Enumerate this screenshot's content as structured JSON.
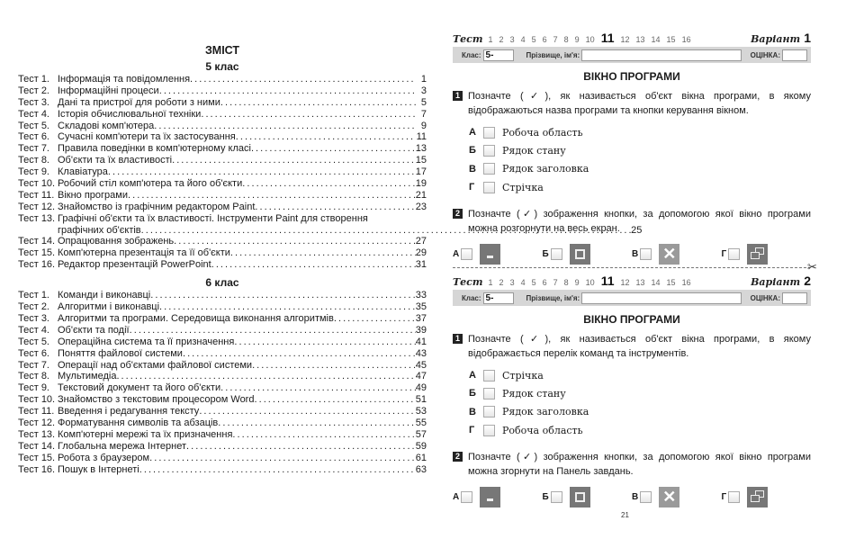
{
  "toc": {
    "title": "ЗМІСТ",
    "sections": [
      {
        "heading": "5 клас",
        "items": [
          {
            "num": "Тест 1.",
            "title": "Інформація та повідомлення",
            "page": "1"
          },
          {
            "num": "Тест 2.",
            "title": "Інформаційні процеси",
            "page": "3"
          },
          {
            "num": "Тест 3.",
            "title": "Дані та пристрої для роботи з ними",
            "page": "5"
          },
          {
            "num": "Тест 4.",
            "title": "Історія обчислювальної техніки",
            "page": "7"
          },
          {
            "num": "Тест 5.",
            "title": "Складові комп'ютера",
            "page": "9"
          },
          {
            "num": "Тест 6.",
            "title": "Сучасні комп'ютери та їх застосування",
            "page": "11"
          },
          {
            "num": "Тест 7.",
            "title": "Правила поведінки в комп'ютерному класі",
            "page": "13"
          },
          {
            "num": "Тест 8.",
            "title": "Об'єкти та їх властивості",
            "page": "15"
          },
          {
            "num": "Тест 9.",
            "title": "Клавіатура",
            "page": "17"
          },
          {
            "num": "Тест 10.",
            "title": "Робочий стіл комп'ютера та його об'єкти",
            "page": "19"
          },
          {
            "num": "Тест 11.",
            "title": "Вікно програми",
            "page": "21"
          },
          {
            "num": "Тест 12.",
            "title": "Знайомство із графічним редактором Paint",
            "page": "23"
          },
          {
            "num": "Тест 13.",
            "title": "Графічні об'єкти та їх властивості. Інструменти Paint для створення",
            "title2": "графічних об'єктів",
            "page": "25"
          },
          {
            "num": "Тест 14.",
            "title": "Опрацювання зображень",
            "page": "27"
          },
          {
            "num": "Тест 15.",
            "title": "Комп'ютерна презентація та її об'єкти",
            "page": "29"
          },
          {
            "num": "Тест 16.",
            "title": "Редактор презентацій PowerPoint",
            "page": "31"
          }
        ]
      },
      {
        "heading": "6 клас",
        "items": [
          {
            "num": "Тест 1.",
            "title": "Команди і виконавці",
            "page": "33"
          },
          {
            "num": "Тест 2.",
            "title": "Алгоритми і виконавці",
            "page": "35"
          },
          {
            "num": "Тест 3.",
            "title": "Алгоритми та програми. Середовища виконання алгоритмів",
            "page": "37"
          },
          {
            "num": "Тест 4.",
            "title": "Об'єкти та події",
            "page": "39"
          },
          {
            "num": "Тест 5.",
            "title": "Операційна система та її призначення",
            "page": "41"
          },
          {
            "num": "Тест 6.",
            "title": "Поняття файлової системи",
            "page": "43"
          },
          {
            "num": "Тест 7.",
            "title": "Операції над об'єктами файлової системи",
            "page": "45"
          },
          {
            "num": "Тест 8.",
            "title": "Мультимедіа",
            "page": "47"
          },
          {
            "num": "Тест 9.",
            "title": "Текстовий документ та його об'єкти",
            "page": "49"
          },
          {
            "num": "Тест 10.",
            "title": "Знайомство з текстовим процесором Word",
            "page": "51"
          },
          {
            "num": "Тест 11.",
            "title": "Введення і редагування тексту",
            "page": "53"
          },
          {
            "num": "Тест 12.",
            "title": "Форматування символів та абзаців",
            "page": "55"
          },
          {
            "num": "Тест 13.",
            "title": "Комп'ютерні мережі та їх призначення",
            "page": "57"
          },
          {
            "num": "Тест 14.",
            "title": "Глобальна мережа Інтернет",
            "page": "59"
          },
          {
            "num": "Тест 15.",
            "title": "Робота з браузером",
            "page": "61"
          },
          {
            "num": "Тест 16.",
            "title": "Пошук в Інтернеті",
            "page": "63"
          }
        ]
      }
    ]
  },
  "test_page": {
    "test_label": "Тест",
    "test_numbers": [
      "1",
      "2",
      "3",
      "4",
      "5",
      "6",
      "7",
      "8",
      "9",
      "10",
      "11",
      "12",
      "13",
      "14",
      "15",
      "16"
    ],
    "current_test": "11",
    "variant_label": "Варіант",
    "class_label": "Клас:",
    "class_value": "5-",
    "name_label": "Прізвище, ім'я:",
    "grade_label": "ОЦІНКА:",
    "page_number": "21",
    "variants": [
      {
        "number": "1",
        "title": "ВІКНО ПРОГРАМИ",
        "q1": {
          "n": "1",
          "text": "Позначте (✓), як називається об'єкт вікна програми, в якому відображаються назва програми та кнопки керування вікном.",
          "options": [
            {
              "l": "А",
              "t": "Робоча область"
            },
            {
              "l": "Б",
              "t": "Рядок стану"
            },
            {
              "l": "В",
              "t": "Рядок заголовка"
            },
            {
              "l": "Г",
              "t": "Стрічка"
            }
          ]
        },
        "q2": {
          "n": "2",
          "text": "Позначте (✓) зображення кнопки, за допомогою якої вікно програми можна розгорнути на весь екран.",
          "options": [
            {
              "l": "А",
              "icon": "minimize-icon"
            },
            {
              "l": "Б",
              "icon": "maximize-icon"
            },
            {
              "l": "В",
              "icon": "close-icon"
            },
            {
              "l": "Г",
              "icon": "restore-icon"
            }
          ]
        }
      },
      {
        "number": "2",
        "title": "ВІКНО ПРОГРАМИ",
        "q1": {
          "n": "1",
          "text": "Позначте (✓), як називається об'єкт вікна програми, в якому відображається перелік команд та інструментів.",
          "options": [
            {
              "l": "А",
              "t": "Стрічка"
            },
            {
              "l": "Б",
              "t": "Рядок стану"
            },
            {
              "l": "В",
              "t": "Рядок заголовка"
            },
            {
              "l": "Г",
              "t": "Робоча область"
            }
          ]
        },
        "q2": {
          "n": "2",
          "text": "Позначте (✓) зображення кнопки, за допомогою якої вікно програми можна згорнути на Панель завдань.",
          "options": [
            {
              "l": "А",
              "icon": "minimize-icon"
            },
            {
              "l": "Б",
              "icon": "maximize-icon"
            },
            {
              "l": "В",
              "icon": "close-icon"
            },
            {
              "l": "Г",
              "icon": "restore-icon"
            }
          ]
        }
      }
    ]
  }
}
